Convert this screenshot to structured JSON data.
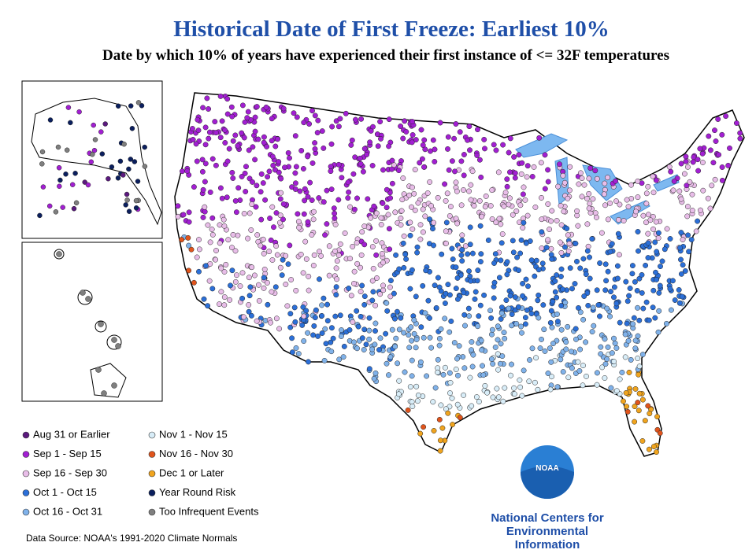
{
  "title": "Historical Date of First Freeze: Earliest 10%",
  "subtitle": "Date by which 10% of years have experienced their first instance of <= 32F temperatures",
  "legend": [
    {
      "label": "Aug 31 or Earlier",
      "color": "#5b1a7e"
    },
    {
      "label": "Sep 1 - Sep 15",
      "color": "#a21fd2"
    },
    {
      "label": "Sep 16 - Sep 30",
      "color": "#e8bde8"
    },
    {
      "label": "Oct 1 - Oct 15",
      "color": "#2b6fd8"
    },
    {
      "label": "Oct 16 - Oct 31",
      "color": "#80b2ea"
    },
    {
      "label": "Nov 1 - Nov 15",
      "color": "#d8edf8"
    },
    {
      "label": "Nov 16 - Nov 30",
      "color": "#e0541c"
    },
    {
      "label": "Dec 1 or Later",
      "color": "#f0a41e"
    },
    {
      "label": "Year Round Risk",
      "color": "#0b1f5e"
    },
    {
      "label": "Too Infrequent Events",
      "color": "#7f7f7f"
    }
  ],
  "source": "Data Source: NOAA's 1991-2020 Climate Normals",
  "logo": {
    "name": "NOAA",
    "org": [
      "National Centers for",
      "Environmental",
      "Information"
    ]
  }
}
